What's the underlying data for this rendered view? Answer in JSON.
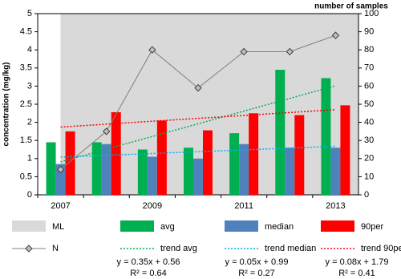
{
  "chart_data": {
    "type": "bar",
    "y_label": "concentration (mg/kg)",
    "y2_label": "number of samples",
    "categories": [
      "2007",
      null,
      "2009",
      null,
      "2011",
      null,
      "2013"
    ],
    "ylim": [
      0,
      5
    ],
    "yticks": [
      0,
      0.5,
      1,
      1.5,
      2,
      2.5,
      3,
      3.5,
      4,
      4.5,
      5
    ],
    "y2lim": [
      0,
      100
    ],
    "y2ticks": [
      0,
      10,
      20,
      30,
      40,
      50,
      60,
      70,
      80,
      90,
      100
    ],
    "series": [
      {
        "name": "ML",
        "kind": "area",
        "color": "#d9d9d9",
        "values": [
          5,
          5,
          5,
          5,
          5,
          5,
          5
        ]
      },
      {
        "name": "avg",
        "kind": "bar",
        "color": "#00b050",
        "values": [
          1.45,
          1.45,
          1.25,
          1.3,
          1.7,
          3.45,
          3.22
        ]
      },
      {
        "name": "median",
        "kind": "bar",
        "color": "#4f81bd",
        "values": [
          0.85,
          1.4,
          1.05,
          1.0,
          1.4,
          1.3,
          1.3
        ]
      },
      {
        "name": "90per",
        "kind": "bar",
        "color": "#ff0000",
        "values": [
          1.75,
          2.28,
          2.05,
          1.78,
          2.25,
          2.2,
          2.47
        ]
      },
      {
        "name": "N",
        "kind": "line",
        "axis": "y2",
        "color": "#808080",
        "values": [
          14,
          35,
          80,
          59,
          79,
          79,
          88
        ]
      },
      {
        "name": "trend avg",
        "kind": "trend",
        "color": "#00b050",
        "values": [
          0.91,
          1.26,
          1.61,
          1.96,
          2.31,
          2.66,
          3.01
        ]
      },
      {
        "name": "trend median",
        "kind": "trend",
        "color": "#00b0f0",
        "values": [
          1.04,
          1.09,
          1.14,
          1.19,
          1.24,
          1.29,
          1.34
        ]
      },
      {
        "name": "trend 90per",
        "kind": "trend",
        "color": "#ff0000",
        "values": [
          1.87,
          1.95,
          2.03,
          2.11,
          2.19,
          2.27,
          2.35
        ]
      }
    ],
    "equations": [
      [
        "y = 0.35x + 0.56",
        "R² = 0.64"
      ],
      [
        "y = 0.05x + 0.99",
        "R² = 0.27"
      ],
      [
        "y = 0.08x + 1.79",
        "R² = 0.41"
      ]
    ]
  }
}
